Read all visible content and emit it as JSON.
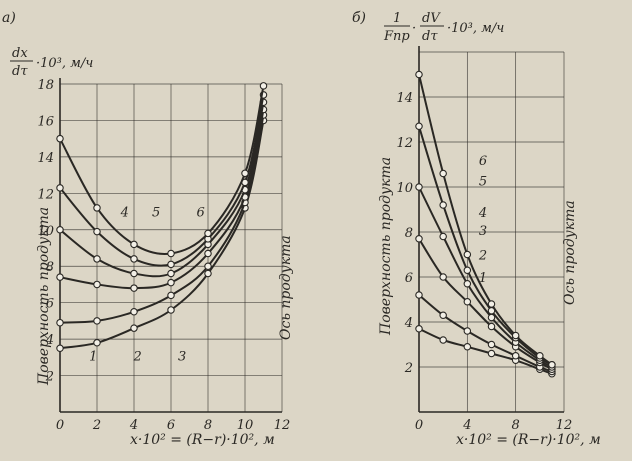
{
  "chart_data": [
    {
      "panel_label": "а)",
      "type": "line",
      "ylabel": "dx/dτ · 10³, м/ч",
      "ylabel_parts": {
        "num": "dx",
        "den": "dτ",
        "rest": "·10³, м/ч"
      },
      "xlabel": "x·10² = (R−r)·10², м",
      "xlim": [
        0,
        12
      ],
      "ylim": [
        0,
        18
      ],
      "xticks": [
        "0",
        "2",
        "4",
        "6",
        "8",
        "10",
        "12"
      ],
      "yticks": [
        "2",
        "4",
        "6",
        "8",
        "10",
        "12",
        "14",
        "16",
        "18"
      ],
      "grid": true,
      "left_annotation": "Поверхность продукта",
      "right_annotation": "Ось продукта",
      "series": [
        {
          "name": "1",
          "x": [
            0,
            2,
            4,
            6,
            8,
            10,
            11
          ],
          "y": [
            3.5,
            3.8,
            4.6,
            5.6,
            7.6,
            11.2,
            16.0
          ]
        },
        {
          "name": "2",
          "x": [
            0,
            2,
            4,
            6,
            8,
            10,
            11
          ],
          "y": [
            4.9,
            5.0,
            5.5,
            6.4,
            8.0,
            11.5,
            16.3
          ]
        },
        {
          "name": "3",
          "x": [
            0,
            2,
            4,
            6,
            8,
            10,
            11
          ],
          "y": [
            7.4,
            7.0,
            6.8,
            7.1,
            8.7,
            11.8,
            16.6
          ]
        },
        {
          "name": "4",
          "x": [
            0,
            2,
            4,
            6,
            8,
            10,
            11
          ],
          "y": [
            10.0,
            8.4,
            7.6,
            7.6,
            9.2,
            12.2,
            17.0
          ]
        },
        {
          "name": "5",
          "x": [
            0,
            2,
            4,
            6,
            8,
            10,
            11
          ],
          "y": [
            12.3,
            9.9,
            8.4,
            8.1,
            9.5,
            12.6,
            17.4
          ]
        },
        {
          "name": "6",
          "x": [
            0,
            2,
            4,
            6,
            8,
            10,
            11
          ],
          "y": [
            15.0,
            11.2,
            9.2,
            8.7,
            9.8,
            13.1,
            17.9
          ]
        }
      ],
      "curve_labels": [
        {
          "name": "1",
          "x": 1.8,
          "y": 3.1
        },
        {
          "name": "2",
          "x": 4.2,
          "y": 3.1
        },
        {
          "name": "3",
          "x": 6.6,
          "y": 3.1
        },
        {
          "name": "4",
          "x": 3.5,
          "y": 11.0
        },
        {
          "name": "5",
          "x": 5.2,
          "y": 11.0
        },
        {
          "name": "6",
          "x": 7.6,
          "y": 11.0
        }
      ]
    },
    {
      "panel_label": "б)",
      "type": "line",
      "ylabel": "1/Fпр · dV/dτ · 10³, м/ч",
      "ylabel_parts": {
        "num1": "1",
        "den1": "Fпр",
        "num2": "dV",
        "den2": "dτ",
        "rest": "·10³, м/ч"
      },
      "xlabel": "x·10² = (R−r)·10², м",
      "xlim": [
        0,
        12
      ],
      "ylim": [
        0,
        16
      ],
      "xticks": [
        "0",
        "4",
        "8",
        "12"
      ],
      "yticks": [
        "2",
        "4",
        "6",
        "8",
        "10",
        "12",
        "14"
      ],
      "grid": true,
      "left_annotation": "Поверхность продукта",
      "right_annotation": "Ось продукта",
      "series": [
        {
          "name": "1",
          "x": [
            0,
            2,
            4,
            6,
            8,
            10,
            11
          ],
          "y": [
            3.7,
            3.2,
            2.9,
            2.6,
            2.3,
            1.9,
            1.7
          ]
        },
        {
          "name": "2",
          "x": [
            0,
            2,
            4,
            6,
            8,
            10,
            11
          ],
          "y": [
            5.2,
            4.3,
            3.6,
            3.0,
            2.5,
            2.0,
            1.8
          ]
        },
        {
          "name": "3",
          "x": [
            0,
            2,
            4,
            6,
            8,
            10,
            11
          ],
          "y": [
            7.7,
            6.0,
            4.9,
            3.8,
            2.9,
            2.2,
            1.9
          ]
        },
        {
          "name": "4",
          "x": [
            0,
            2,
            4,
            6,
            8,
            10,
            11
          ],
          "y": [
            10.0,
            7.8,
            5.7,
            4.2,
            3.1,
            2.3,
            2.0
          ]
        },
        {
          "name": "5",
          "x": [
            0,
            2,
            4,
            6,
            8,
            10,
            11
          ],
          "y": [
            12.7,
            9.2,
            6.3,
            4.5,
            3.3,
            2.4,
            2.1
          ]
        },
        {
          "name": "6",
          "x": [
            0,
            2,
            4,
            6,
            8,
            10,
            11
          ],
          "y": [
            15.0,
            10.6,
            7.0,
            4.8,
            3.4,
            2.5,
            2.1
          ]
        }
      ],
      "curve_labels": [
        {
          "name": "6",
          "x": 5.3,
          "y": 11.2
        },
        {
          "name": "5",
          "x": 5.3,
          "y": 10.3
        },
        {
          "name": "4",
          "x": 5.3,
          "y": 8.9
        },
        {
          "name": "3",
          "x": 5.3,
          "y": 8.1
        },
        {
          "name": "2",
          "x": 5.3,
          "y": 7.0
        },
        {
          "name": "1",
          "x": 5.3,
          "y": 6.0
        }
      ]
    }
  ]
}
